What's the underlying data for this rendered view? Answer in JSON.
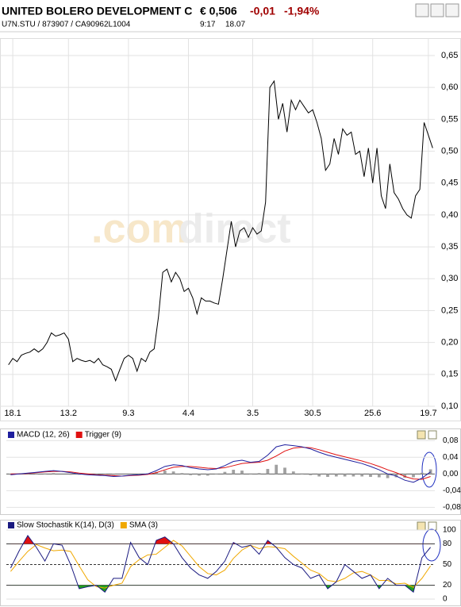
{
  "header": {
    "name": "UNITED BOLERO DEVELOPMENT C",
    "price": "€ 0,506",
    "change": "-0,01",
    "change_pct": "-1,94%",
    "symbol_line": "U7N.STU  /  873907  /  CA90962L1004",
    "time": "9:17",
    "date": "18.07"
  },
  "watermark": {
    "left": ".com",
    "right": "direct"
  },
  "chart_data": [
    {
      "type": "line",
      "color": "#000000",
      "grid": true,
      "categories": [
        null,
        "18.1",
        null,
        null,
        null,
        null,
        null,
        null,
        null,
        null,
        null,
        null,
        null,
        null,
        "13.2",
        null,
        null,
        null,
        null,
        null,
        null,
        null,
        null,
        null,
        null,
        null,
        null,
        null,
        "9.3",
        null,
        null,
        null,
        null,
        null,
        null,
        null,
        null,
        null,
        null,
        null,
        null,
        null,
        "4.4",
        null,
        null,
        null,
        null,
        null,
        null,
        null,
        null,
        null,
        null,
        null,
        null,
        null,
        null,
        "3.5",
        null,
        null,
        null,
        null,
        null,
        null,
        null,
        null,
        null,
        null,
        null,
        null,
        null,
        "30.5",
        null,
        null,
        null,
        null,
        null,
        null,
        null,
        null,
        null,
        null,
        null,
        null,
        null,
        "25.6",
        null,
        null,
        null,
        null,
        null,
        null,
        null,
        null,
        null,
        null,
        null,
        null,
        "19.7",
        null
      ],
      "values": [
        0.165,
        0.175,
        0.17,
        0.18,
        0.183,
        0.185,
        0.19,
        0.185,
        0.19,
        0.2,
        0.215,
        0.21,
        0.212,
        0.215,
        0.205,
        0.17,
        0.175,
        0.172,
        0.17,
        0.172,
        0.168,
        0.175,
        0.165,
        0.162,
        0.158,
        0.14,
        0.158,
        0.175,
        0.18,
        0.175,
        0.155,
        0.175,
        0.17,
        0.185,
        0.19,
        0.24,
        0.31,
        0.315,
        0.295,
        0.31,
        0.3,
        0.28,
        0.285,
        0.27,
        0.245,
        0.27,
        0.265,
        0.265,
        0.262,
        0.26,
        0.3,
        0.345,
        0.39,
        0.35,
        0.375,
        0.38,
        0.365,
        0.38,
        0.37,
        0.375,
        0.42,
        0.6,
        0.61,
        0.55,
        0.575,
        0.53,
        0.58,
        0.565,
        0.58,
        0.57,
        0.56,
        0.565,
        0.545,
        0.52,
        0.47,
        0.48,
        0.52,
        0.495,
        0.535,
        0.525,
        0.53,
        0.495,
        0.5,
        0.46,
        0.505,
        0.45,
        0.505,
        0.43,
        0.41,
        0.48,
        0.435,
        0.425,
        0.41,
        0.4,
        0.395,
        0.43,
        0.44,
        0.545,
        0.525,
        0.505
      ],
      "ylim": [
        0.1,
        0.65
      ],
      "yticks": [
        {
          "value": 0.1,
          "label": "0,10"
        },
        {
          "value": 0.15,
          "label": "0,15"
        },
        {
          "value": 0.2,
          "label": "0,20"
        },
        {
          "value": 0.25,
          "label": "0,25"
        },
        {
          "value": 0.3,
          "label": "0,30"
        },
        {
          "value": 0.35,
          "label": "0,35"
        },
        {
          "value": 0.4,
          "label": "0,40"
        },
        {
          "value": 0.45,
          "label": "0,45"
        },
        {
          "value": 0.5,
          "label": "0,50"
        },
        {
          "value": 0.55,
          "label": "0,55"
        },
        {
          "value": 0.6,
          "label": "0,60"
        },
        {
          "value": 0.65,
          "label": "0,65"
        }
      ]
    },
    {
      "type": "line",
      "grid": true,
      "series": [
        {
          "name": "MACD (12, 26)",
          "color": "#1f1f9e",
          "values": [
            -0.002,
            0.0,
            0.002,
            0.004,
            0.006,
            0.008,
            0.006,
            0.003,
            0.0,
            -0.002,
            -0.003,
            -0.004,
            -0.006,
            -0.005,
            -0.003,
            -0.002,
            0.0,
            0.008,
            0.018,
            0.022,
            0.02,
            0.015,
            0.012,
            0.01,
            0.012,
            0.02,
            0.03,
            0.033,
            0.028,
            0.03,
            0.045,
            0.065,
            0.07,
            0.068,
            0.065,
            0.06,
            0.052,
            0.045,
            0.04,
            0.035,
            0.03,
            0.025,
            0.018,
            0.01,
            0.0,
            -0.005,
            -0.015,
            -0.02,
            -0.01,
            0.005
          ]
        },
        {
          "name": "Trigger (9)",
          "color": "#e01010",
          "values": [
            0.0,
            0.0,
            0.001,
            0.003,
            0.005,
            0.006,
            0.006,
            0.005,
            0.002,
            0.0,
            -0.002,
            -0.003,
            -0.004,
            -0.005,
            -0.004,
            -0.003,
            -0.001,
            0.003,
            0.01,
            0.016,
            0.018,
            0.018,
            0.016,
            0.014,
            0.013,
            0.015,
            0.02,
            0.025,
            0.027,
            0.028,
            0.033,
            0.043,
            0.055,
            0.062,
            0.064,
            0.063,
            0.058,
            0.052,
            0.046,
            0.041,
            0.036,
            0.031,
            0.025,
            0.018,
            0.01,
            0.003,
            -0.006,
            -0.012,
            -0.013,
            -0.006
          ]
        }
      ],
      "histogram": {
        "color": "#a0a0a0",
        "values": [
          -0.002,
          0,
          0.001,
          0.001,
          0.001,
          0.002,
          0,
          -0.002,
          -0.002,
          -0.002,
          -0.001,
          -0.001,
          -0.002,
          0,
          0.001,
          0.001,
          0.001,
          0.005,
          0.008,
          0.006,
          0.002,
          -0.003,
          -0.004,
          -0.004,
          -0.001,
          0.005,
          0.01,
          0.008,
          0.001,
          0.002,
          0.012,
          0.022,
          0.015,
          0.006,
          0.001,
          -0.003,
          -0.006,
          -0.007,
          -0.006,
          -0.006,
          -0.006,
          -0.006,
          -0.007,
          -0.008,
          -0.01,
          -0.008,
          -0.009,
          -0.008,
          0.003,
          0.011
        ]
      },
      "ylim": [
        -0.085,
        0.09
      ],
      "yticks": [
        {
          "value": -0.08,
          "label": "-0,08"
        },
        {
          "value": -0.04,
          "label": "-0,04"
        },
        {
          "value": 0,
          "label": "0,00"
        },
        {
          "value": 0.04,
          "label": "0,04"
        },
        {
          "value": 0.08,
          "label": "0,08"
        }
      ]
    },
    {
      "type": "line",
      "grid": true,
      "series": [
        {
          "name": "Slow Stochastik K(14), D(3)",
          "color": "#1a1a80",
          "values": [
            45,
            70,
            92,
            75,
            55,
            80,
            78,
            50,
            15,
            18,
            20,
            10,
            30,
            30,
            82,
            60,
            50,
            85,
            90,
            80,
            60,
            45,
            35,
            30,
            40,
            55,
            82,
            75,
            78,
            65,
            85,
            75,
            60,
            50,
            45,
            30,
            35,
            15,
            25,
            50,
            40,
            30,
            35,
            15,
            30,
            20,
            20,
            10,
            60,
            75
          ]
        },
        {
          "name": "SMA (3)",
          "color": "#f0a800",
          "values": [
            40,
            55,
            69,
            79,
            74,
            70,
            71,
            69,
            48,
            28,
            18,
            16,
            20,
            23,
            47,
            57,
            64,
            65,
            75,
            85,
            77,
            62,
            47,
            37,
            35,
            42,
            59,
            71,
            78,
            73,
            76,
            75,
            73,
            62,
            52,
            42,
            37,
            27,
            25,
            30,
            38,
            40,
            35,
            27,
            27,
            22,
            23,
            17,
            30,
            48
          ]
        }
      ],
      "zones": [
        {
          "from": 80,
          "to": 100,
          "color": "#e01010"
        },
        {
          "from": 0,
          "to": 20,
          "color": "#20a020"
        }
      ],
      "grid_dashed": [
        50
      ],
      "ylim": [
        0,
        100
      ],
      "yticks": [
        0,
        20,
        50,
        80,
        100
      ]
    }
  ]
}
